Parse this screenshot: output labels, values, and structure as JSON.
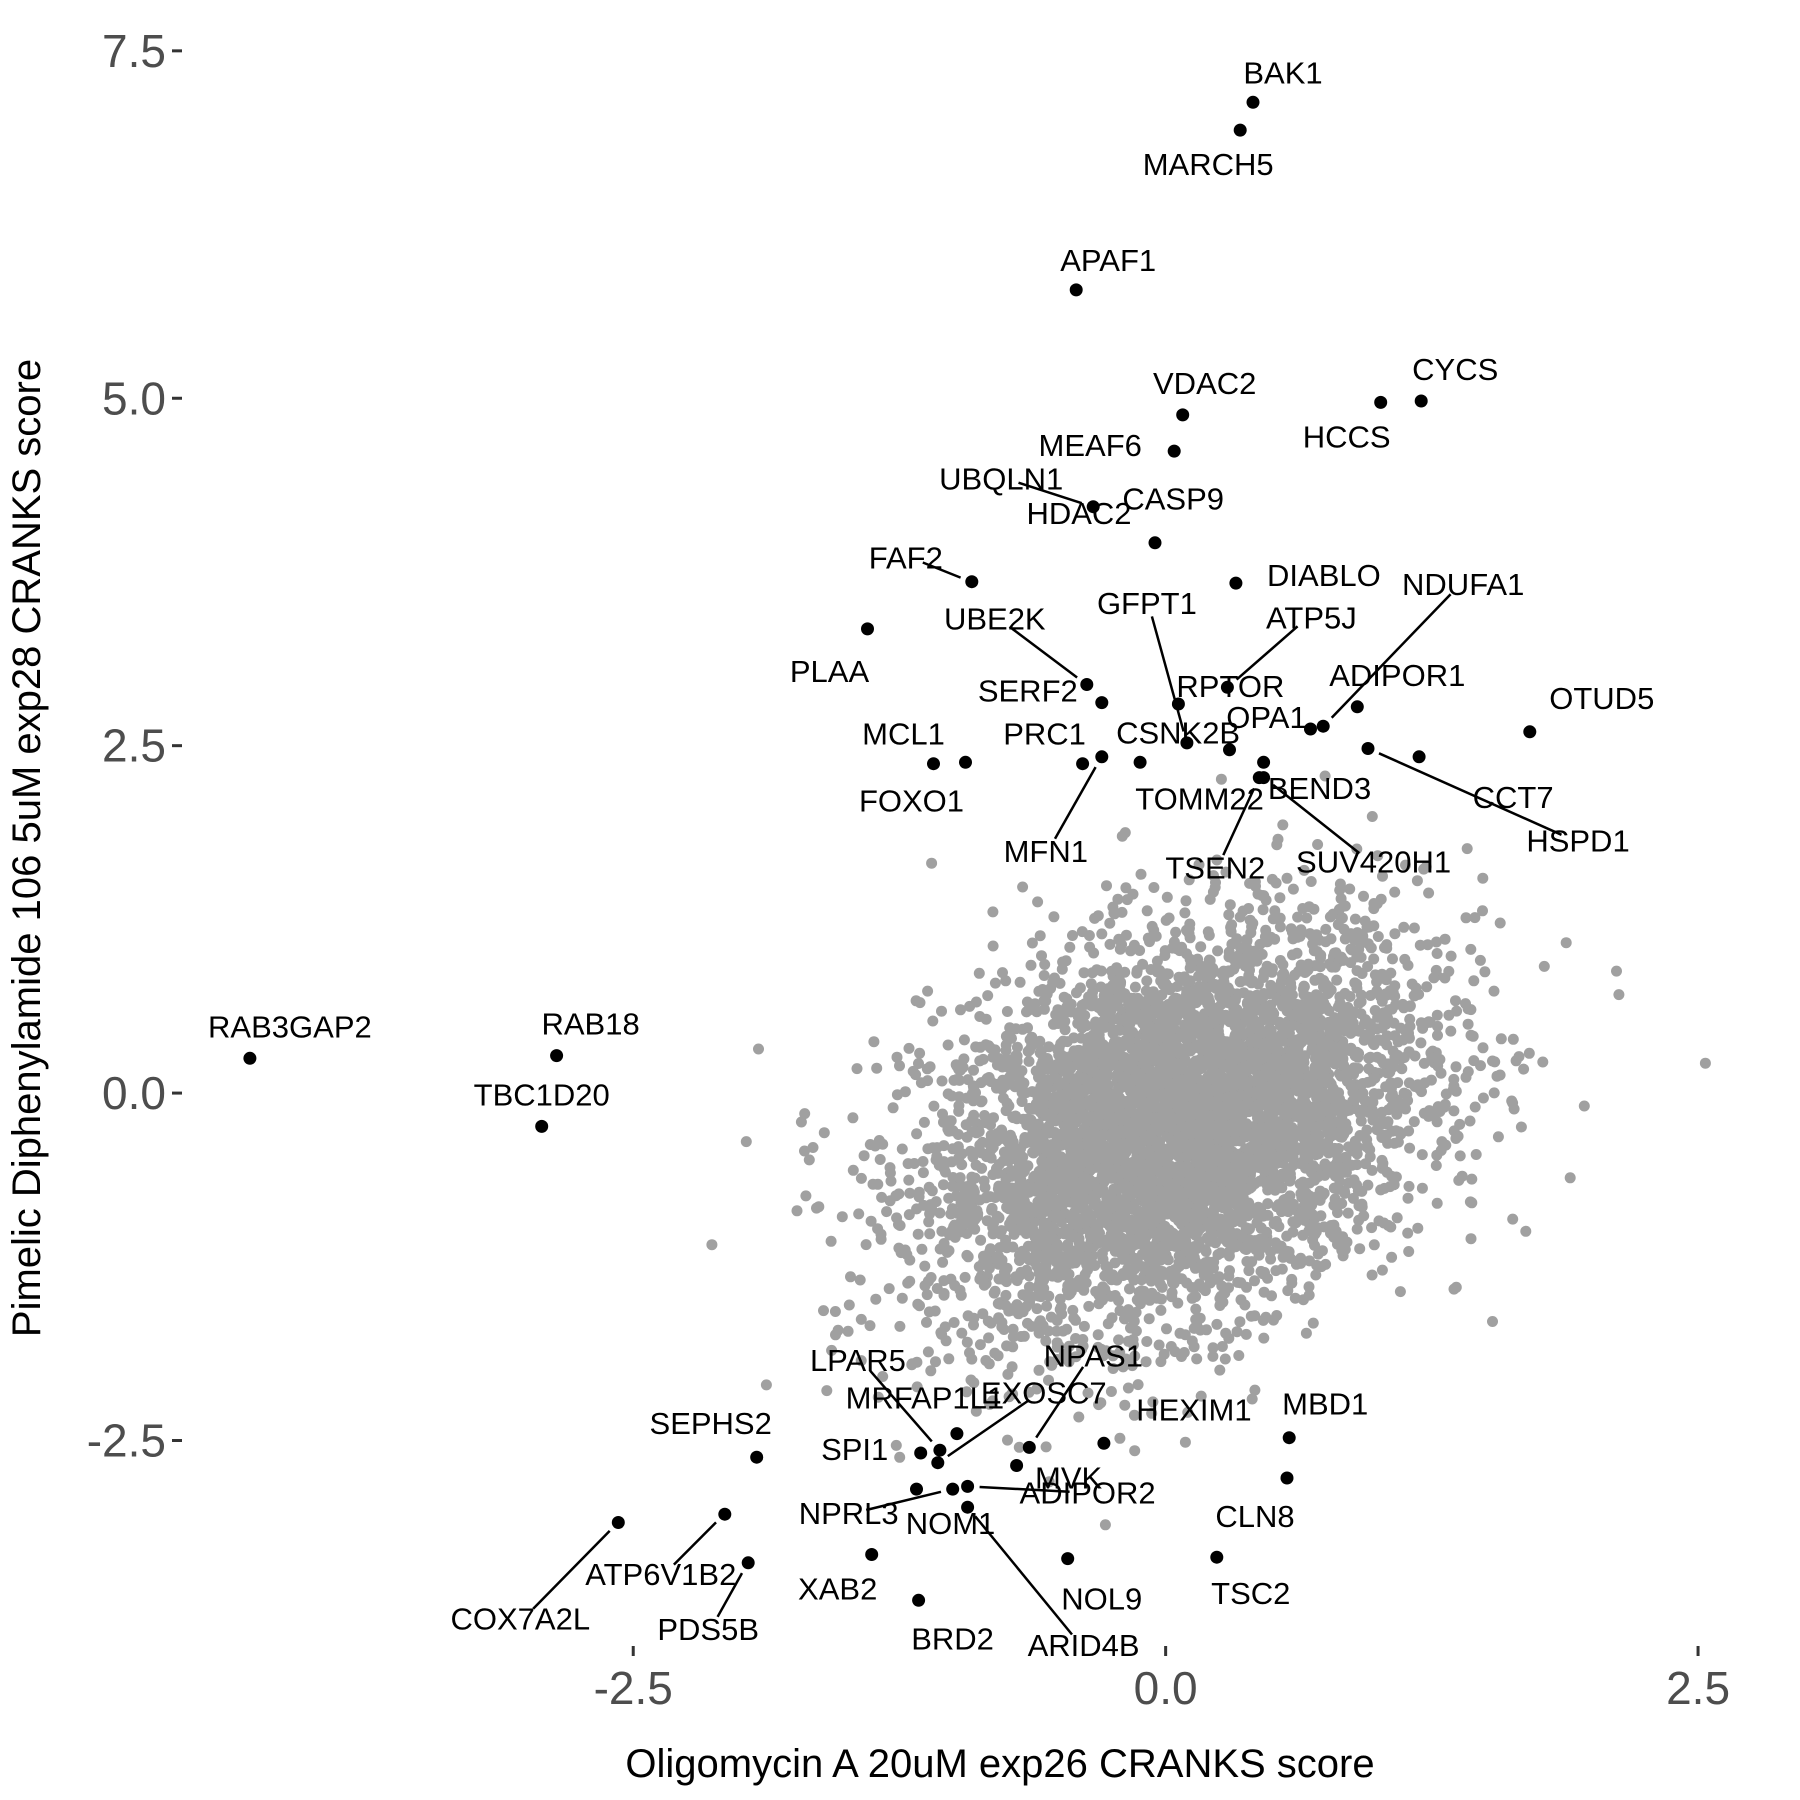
{
  "chart_data": {
    "type": "scatter",
    "title": "",
    "xlabel": "Oligomycin A 20uM exp26 CRANKS score",
    "ylabel": "Pimelic Diphenylamide 106 5uM exp28 CRANKS score",
    "xlim": [
      -4.6,
      2.65
    ],
    "ylim": [
      -3.95,
      7.65
    ],
    "xticks": [
      {
        "value": -2.5,
        "label": "-2.5"
      },
      {
        "value": 0,
        "label": "0.0"
      },
      {
        "value": 2.5,
        "label": "2.5"
      }
    ],
    "yticks": [
      {
        "value": -2.5,
        "label": "-2.5"
      },
      {
        "value": 0,
        "label": "0.0"
      },
      {
        "value": 2.5,
        "label": "2.5"
      },
      {
        "value": 5,
        "label": "5.0"
      },
      {
        "value": 7.5,
        "label": "7.5"
      }
    ],
    "grid": false,
    "legend": "none",
    "colors": {
      "background_points": "#a0a0a0",
      "highlight_points": "#000000",
      "label_lines": "#000000"
    },
    "background_cloud": {
      "description_count": 20000,
      "center": [
        0.05,
        -0.25
      ],
      "sd": [
        0.58,
        0.72
      ],
      "correlation": 0.35
    },
    "highlighted": [
      {
        "label": "BAK1",
        "x": 0.41,
        "y": 7.13
      },
      {
        "label": "MARCH5",
        "x": 0.35,
        "y": 6.93
      },
      {
        "label": "APAF1",
        "x": -0.42,
        "y": 5.78
      },
      {
        "label": "CYCS",
        "x": 1.2,
        "y": 4.98
      },
      {
        "label": "HCCS",
        "x": 1.01,
        "y": 4.97
      },
      {
        "label": "VDAC2",
        "x": 0.08,
        "y": 4.88
      },
      {
        "label": "MEAF6",
        "x": 0.04,
        "y": 4.62
      },
      {
        "label": "CASP9",
        "x": -0.34,
        "y": 4.22
      },
      {
        "label": "UBQLN1",
        "x": -0.34,
        "y": 4.22
      },
      {
        "label": "HDAC2",
        "x": -0.05,
        "y": 3.96
      },
      {
        "label": "DIABLO",
        "x": 0.33,
        "y": 3.67
      },
      {
        "label": "FAF2",
        "x": -0.91,
        "y": 3.68
      },
      {
        "label": "PLAA",
        "x": -1.4,
        "y": 3.34
      },
      {
        "label": "GFPT1",
        "x": 0.1,
        "y": 2.52
      },
      {
        "label": "ATP5J",
        "x": 0.29,
        "y": 2.92
      },
      {
        "label": "NDUFA1",
        "x": 0.74,
        "y": 2.64
      },
      {
        "label": "UBE2K",
        "x": -0.37,
        "y": 2.94
      },
      {
        "label": "SERF2",
        "x": -0.3,
        "y": 2.81
      },
      {
        "label": "RPTOR",
        "x": 0.06,
        "y": 2.8
      },
      {
        "label": "ADIPOR1",
        "x": 0.9,
        "y": 2.78
      },
      {
        "label": "OTUD5",
        "x": 1.71,
        "y": 2.6
      },
      {
        "label": "OPA1",
        "x": 0.68,
        "y": 2.62
      },
      {
        "label": "MCL1",
        "x": -1.09,
        "y": 2.37
      },
      {
        "label": "PRC1",
        "x": -0.39,
        "y": 2.37
      },
      {
        "label": "CSNK2B",
        "x": -0.12,
        "y": 2.38
      },
      {
        "label": "FOXO1",
        "x": -0.94,
        "y": 2.38
      },
      {
        "label": "TOMM22",
        "x": 0.46,
        "y": 2.38
      },
      {
        "label": "BEND3",
        "x": 0.3,
        "y": 2.47
      },
      {
        "label": "CCT7",
        "x": 1.19,
        "y": 2.42
      },
      {
        "label": "MFN1",
        "x": -0.3,
        "y": 2.42
      },
      {
        "label": "TSEN2",
        "x": 0.44,
        "y": 2.27
      },
      {
        "label": "SUV420H1",
        "x": 0.46,
        "y": 2.27
      },
      {
        "label": "HSPD1",
        "x": 0.95,
        "y": 2.48
      },
      {
        "label": "RAB3GAP2",
        "x": -4.3,
        "y": 0.25
      },
      {
        "label": "RAB18",
        "x": -2.86,
        "y": 0.27
      },
      {
        "label": "TBC1D20",
        "x": -2.93,
        "y": -0.24
      },
      {
        "label": "LPAR5",
        "x": -1.06,
        "y": -2.57
      },
      {
        "label": "NPAS1",
        "x": -0.64,
        "y": -2.55
      },
      {
        "label": "MRFAP1L1",
        "x": -0.98,
        "y": -2.45
      },
      {
        "label": "EXOSC7",
        "x": -1.07,
        "y": -2.66
      },
      {
        "label": "HEXIM1",
        "x": -0.29,
        "y": -2.52
      },
      {
        "label": "MBD1",
        "x": 0.58,
        "y": -2.48
      },
      {
        "label": "SEPHS2",
        "x": -1.92,
        "y": -2.62
      },
      {
        "label": "SPI1",
        "x": -1.15,
        "y": -2.59
      },
      {
        "label": "MVK",
        "x": -0.7,
        "y": -2.68
      },
      {
        "label": "CLN8",
        "x": 0.57,
        "y": -2.77
      },
      {
        "label": "NPRL3",
        "x": -1.0,
        "y": -2.85
      },
      {
        "label": "ADIPOR2",
        "x": -0.93,
        "y": -2.83
      },
      {
        "label": "ATP6V1B2",
        "x": -2.07,
        "y": -3.03
      },
      {
        "label": "COX7A2L",
        "x": -2.57,
        "y": -3.09
      },
      {
        "label": "XAB2",
        "x": -1.38,
        "y": -3.32
      },
      {
        "label": "NOM1",
        "x": -1.17,
        "y": -2.85
      },
      {
        "label": "ARID4B",
        "x": -0.93,
        "y": -2.98
      },
      {
        "label": "NOL9",
        "x": -0.46,
        "y": -3.35
      },
      {
        "label": "TSC2",
        "x": 0.24,
        "y": -3.34
      },
      {
        "label": "PDS5B",
        "x": -1.96,
        "y": -3.38
      },
      {
        "label": "BRD2",
        "x": -1.16,
        "y": -3.65
      }
    ]
  }
}
